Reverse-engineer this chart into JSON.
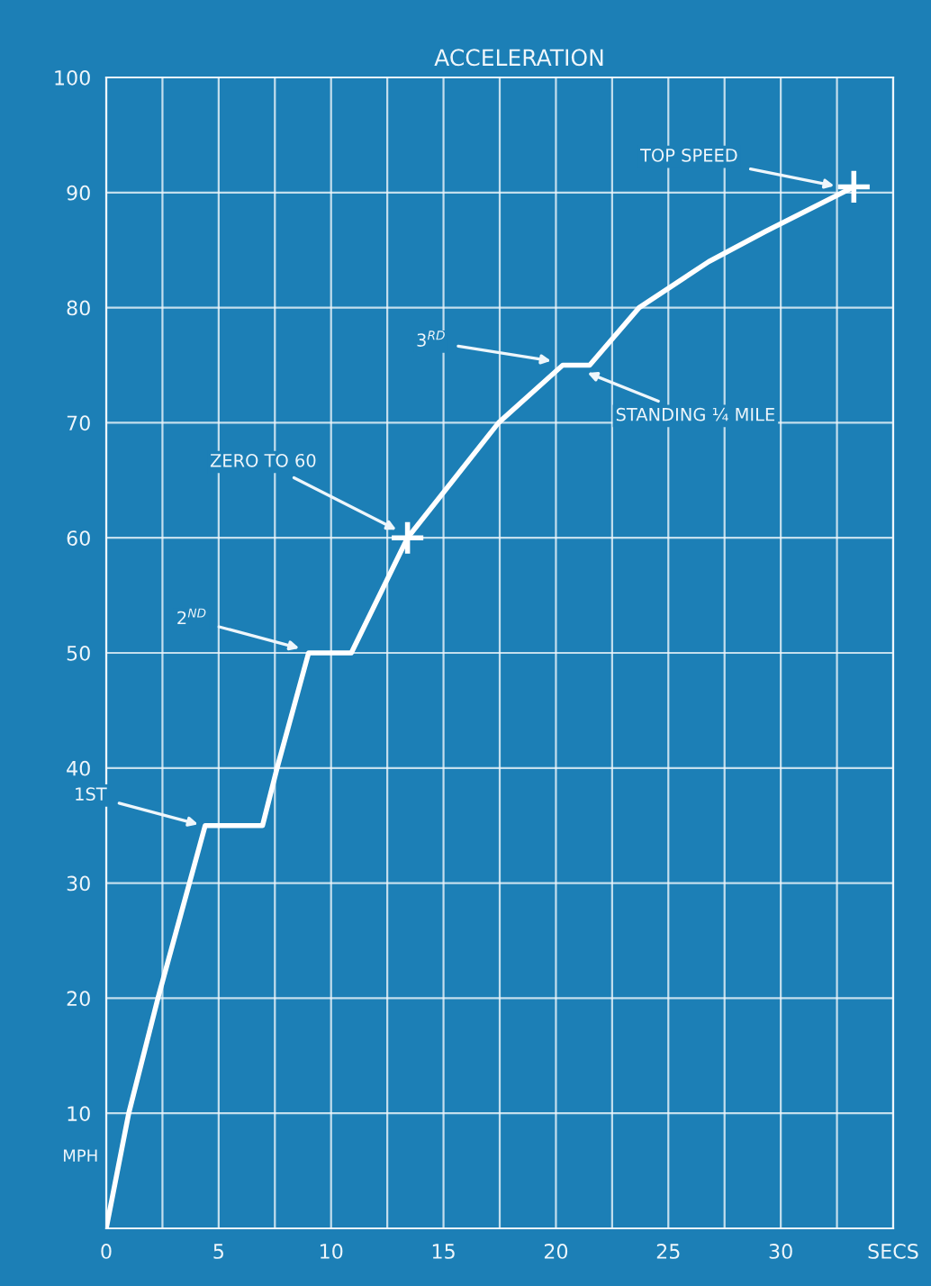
{
  "chart_data": {
    "type": "line",
    "title": "ACCELERATION",
    "ylabel": "MPH",
    "x": [
      0,
      1.0,
      2.3,
      4.4,
      6.95,
      7.6,
      9.0,
      10.9,
      13.4,
      17.45,
      20.3,
      21.5,
      23.7,
      26.8,
      29.3,
      33.25
    ],
    "series": [
      {
        "color": "#ffffff",
        "values": [
          0,
          10,
          20,
          35,
          35,
          40,
          50,
          50,
          60,
          70,
          75,
          75,
          80,
          84,
          86.6,
          90.5
        ]
      },
      {
        "type": "scatter",
        "color": "#ffffff",
        "marker": "cross",
        "x": [
          13.4,
          33.25
        ],
        "values": [
          60,
          90.5
        ]
      }
    ],
    "xlim": [
      0,
      35
    ],
    "ylim": [
      0,
      100
    ],
    "xticks": [
      0,
      {
        "value": 2.5,
        "label": null
      },
      5,
      {
        "value": 7.5,
        "label": null
      },
      10,
      {
        "value": 12.5,
        "label": null
      },
      15,
      {
        "value": 17.5,
        "label": null
      },
      20,
      {
        "value": 22.5,
        "label": null
      },
      25,
      {
        "value": 27.5,
        "label": null
      },
      30,
      {
        "value": 32.5,
        "label": null
      },
      {
        "value": 35,
        "label": "SECS"
      }
    ],
    "yticks": [
      {
        "value": 0,
        "label": null
      },
      10,
      20,
      30,
      40,
      50,
      60,
      70,
      80,
      90,
      100
    ],
    "grid": true,
    "marker": "none",
    "line_style": "solid",
    "annotations": [
      {
        "text": "1ST",
        "x": 4.3,
        "y": 35
      },
      {
        "text": "2$^{ND}$",
        "x": 8.8,
        "y": 50.3
      },
      {
        "text": "ZERO TO 60",
        "x": 13.1,
        "y": 60.5
      },
      {
        "text": "3$^{RD}$",
        "x": 20.0,
        "y": 75.3
      },
      {
        "text": "STANDING ¼ MILE",
        "x": 21.2,
        "y": 74.5
      },
      {
        "text": "TOP SPEED",
        "x": 32.6,
        "y": 90.5
      }
    ]
  }
}
